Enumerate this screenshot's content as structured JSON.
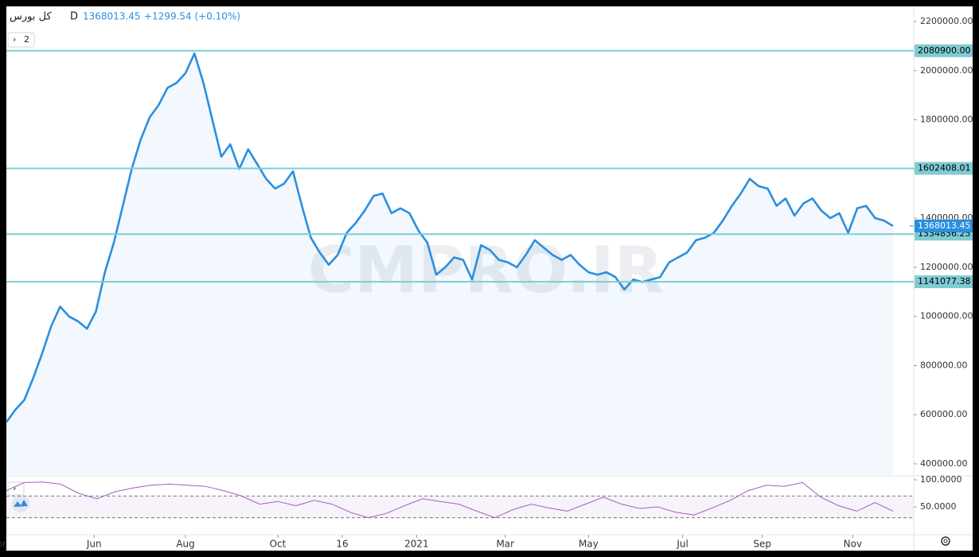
{
  "chart_data": {
    "type": "line",
    "symbol": "كل بورس",
    "interval": "D",
    "change": "+1299.54 (+0.10%)",
    "indicator_count": "2",
    "watermark": "CMPRO.IR",
    "last_price": {
      "value": 1368013.45,
      "label": "1368013.45"
    },
    "color": "#2a8fe0",
    "xlim": [
      0,
      99
    ],
    "xticks": [
      {
        "value": 0,
        "label": "or"
      },
      {
        "value": 9.8,
        "label": "Jun"
      },
      {
        "value": 20,
        "label": "Aug"
      },
      {
        "value": 30.3,
        "label": "Oct"
      },
      {
        "value": 37.5,
        "label": "16"
      },
      {
        "value": 45.8,
        "label": "2021"
      },
      {
        "value": 55.7,
        "label": "Mar"
      },
      {
        "value": 65,
        "label": "May"
      },
      {
        "value": 75.5,
        "label": "Jul"
      },
      {
        "value": 84.4,
        "label": "Sep"
      },
      {
        "value": 94.5,
        "label": "Nov"
      }
    ],
    "ylim": [
      400000,
      2200000
    ],
    "yticks": [
      {
        "value": 2200000,
        "label": "2200000.00"
      },
      {
        "value": 2000000,
        "label": "2000000.00"
      },
      {
        "value": 1800000,
        "label": "1800000.00"
      },
      {
        "value": 1600000,
        "label": "1600000.00"
      },
      {
        "value": 1400000,
        "label": "1400000.00"
      },
      {
        "value": 1200000,
        "label": "1200000.00"
      },
      {
        "value": 1000000,
        "label": "1000000.00"
      },
      {
        "value": 800000,
        "label": "800000.00"
      },
      {
        "value": 600000,
        "label": "600000.00"
      },
      {
        "value": 400000,
        "label": "400000.00"
      }
    ],
    "levels": [
      {
        "value": 2080900,
        "label": "2080900.00"
      },
      {
        "value": 1602408.01,
        "label": "1602408.01"
      },
      {
        "value": 1334836.25,
        "label": "1334836.25"
      },
      {
        "value": 1141077.38,
        "label": "1141077.38"
      }
    ],
    "values": [
      570000,
      620000,
      660000,
      750000,
      850000,
      960000,
      1040000,
      1000000,
      980000,
      950000,
      1020000,
      1180000,
      1300000,
      1450000,
      1600000,
      1720000,
      1810000,
      1860000,
      1930000,
      1950000,
      1990000,
      2070000,
      1950000,
      1800000,
      1650000,
      1700000,
      1600000,
      1680000,
      1620000,
      1560000,
      1520000,
      1540000,
      1590000,
      1450000,
      1320000,
      1260000,
      1210000,
      1250000,
      1340000,
      1380000,
      1430000,
      1490000,
      1500000,
      1420000,
      1440000,
      1420000,
      1350000,
      1300000,
      1170000,
      1200000,
      1240000,
      1230000,
      1150000,
      1290000,
      1270000,
      1230000,
      1220000,
      1200000,
      1250000,
      1310000,
      1280000,
      1250000,
      1230000,
      1250000,
      1210000,
      1180000,
      1170000,
      1180000,
      1160000,
      1110000,
      1150000,
      1140000,
      1150000,
      1160000,
      1220000,
      1240000,
      1260000,
      1310000,
      1320000,
      1340000,
      1390000,
      1450000,
      1500000,
      1560000,
      1530000,
      1520000,
      1450000,
      1480000,
      1410000,
      1460000,
      1480000,
      1430000,
      1400000,
      1420000,
      1340000,
      1440000,
      1450000,
      1400000,
      1390000,
      1368000
    ],
    "rsi": {
      "color": "#a35cc4",
      "xlim": [
        0,
        49
      ],
      "ylim": [
        0,
        100
      ],
      "yticks": [
        {
          "value": 100,
          "label": "100.0000"
        },
        {
          "value": 50,
          "label": "50.0000"
        }
      ],
      "bands": [
        70,
        30
      ],
      "values": [
        80,
        95,
        96,
        92,
        75,
        65,
        78,
        85,
        90,
        92,
        90,
        88,
        80,
        70,
        55,
        60,
        52,
        62,
        55,
        40,
        30,
        38,
        52,
        65,
        60,
        55,
        42,
        30,
        45,
        55,
        48,
        42,
        55,
        68,
        55,
        47,
        50,
        40,
        35,
        48,
        62,
        80,
        90,
        88,
        95,
        68,
        52,
        42,
        58,
        42
      ]
    }
  }
}
